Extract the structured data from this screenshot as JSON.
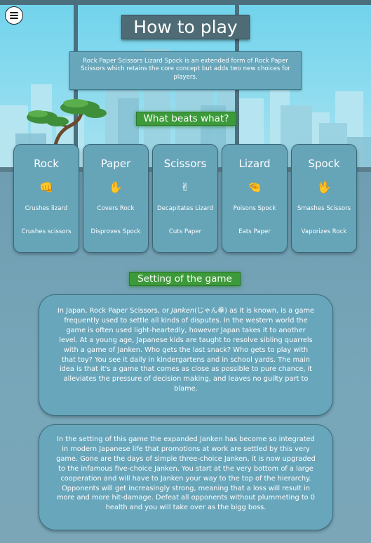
{
  "menu": {
    "icon": "hamburger-menu-icon"
  },
  "title": "How to play",
  "intro": "Rock Paper Scissors Lizard Spock is an extended form of Rock Paper Scissors which retains the core concept but adds two new choices for players.",
  "beats_heading": "What beats what?",
  "cards": [
    {
      "name": "Rock",
      "emoji": "👊",
      "icon": "rock-fist-icon",
      "line1": "Crushes lizard",
      "line2": "Crushes scissors"
    },
    {
      "name": "Paper",
      "emoji": "✋",
      "icon": "paper-hand-icon",
      "line1": "Covers Rock",
      "line2": "Disproves Spock"
    },
    {
      "name": "Scissors",
      "emoji": "✌",
      "icon": "scissors-hand-icon",
      "line1": "Decapitates Lizard",
      "line2": "Cuts Paper"
    },
    {
      "name": "Lizard",
      "emoji": "🤏",
      "icon": "lizard-hand-icon",
      "line1": "Poisons Spock",
      "line2": "Eats Paper"
    },
    {
      "name": "Spock",
      "emoji": "🖖",
      "icon": "spock-hand-icon",
      "line1": "Smashes Scissors",
      "line2": "Vaporizes Rock"
    }
  ],
  "setting_heading": "Setting of the game",
  "setting": {
    "p1_before": "In Japan, Rock Paper Scissors, or ",
    "p1_janken": "Janken",
    "p1_kanji": "(じゃん拳)",
    "p1_after": " as it is known, is a game frequently used to settle all kinds of disputes. In the western world the game is often used light-heartedly, however Japan takes it to another level. At a young age, Japanese kids are taught to resolve sibling quarrels with a game of Janken. Who gets the last snack? Who gets to play with that toy? You see it daily in kindergartens and in school yards. The main idea is that it's a game that comes as close as possible to pure chance, it alleviates the pressure of decision making, and leaves no guilty part to blame.",
    "p2": "In the setting of this game the expanded Janken has become so integrated in modern Japanese life that promotions at work are settled by this very game. Gone are the days of simple three-choice Janken, it is now upgraded to the infamous five-choice Janken. You start at the very bottom of a large cooperation and will have to Janken your way to the top of the hierarchy. Opponents will get increasingly strong, meaning that a loss will result in more and more hit-damage. Defeat all opponents without plummeting to 0 health and you will take over as the bigg boss."
  },
  "colors": {
    "panel": "#66a4b8",
    "title_bg": "#4f6c76",
    "green": "#3d9a3a",
    "sky": "#8fdcef",
    "floor": "#76a4b8"
  }
}
